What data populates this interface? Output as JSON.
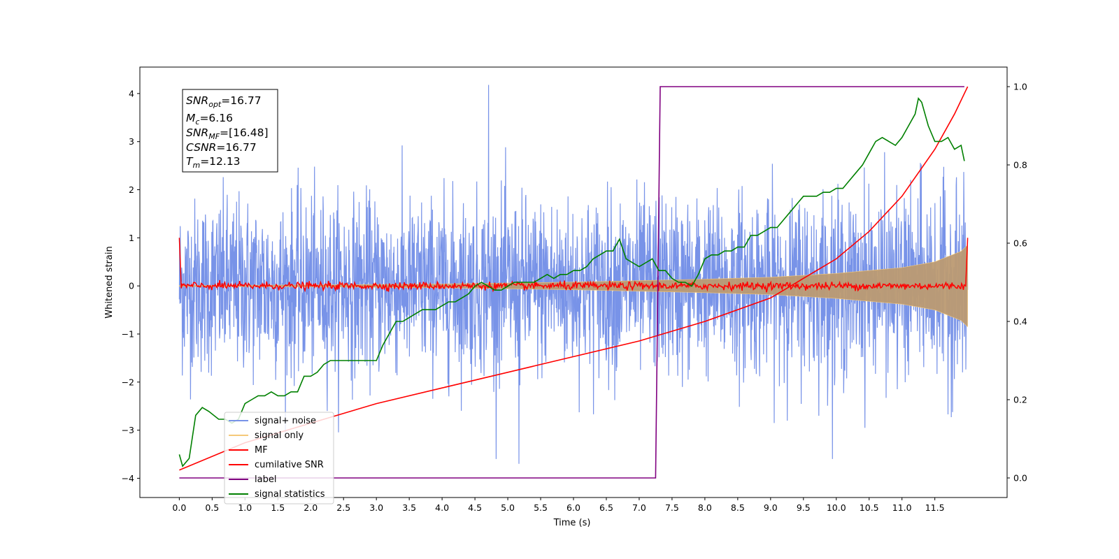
{
  "chart_data": {
    "type": "line",
    "xlabel": "Time (s)",
    "ylabel": "Whitened strain",
    "xlim": [
      -0.6,
      12.6
    ],
    "ylim": [
      -4.4,
      4.55
    ],
    "y2lim": [
      -0.05,
      1.05
    ],
    "x_ticks": [
      "0.0",
      "0.5",
      "1.0",
      "1.5",
      "2.0",
      "2.5",
      "3.0",
      "3.5",
      "4.0",
      "4.5",
      "5.0",
      "5.5",
      "6.0",
      "6.5",
      "7.0",
      "7.5",
      "8.0",
      "8.5",
      "9.0",
      "9.5",
      "10.0",
      "10.5",
      "11.0",
      "11.5"
    ],
    "y_ticks": [
      "−4",
      "−3",
      "−2",
      "−1",
      "0",
      "1",
      "2",
      "3",
      "4"
    ],
    "y2_ticks": [
      "0.0",
      "0.2",
      "0.4",
      "0.6",
      "0.8",
      "1.0"
    ],
    "annotation": {
      "snr_opt": "=16.77",
      "mc": "=6.16",
      "snr_mf": "=[16.48]",
      "csnr": "=16.77",
      "tm": "=12.13"
    },
    "legend": {
      "signal_noise": "signal+ noise",
      "signal_only": "signal only",
      "mf": "MF",
      "cumulative_snr": "cumilative SNR",
      "label": "label",
      "signal_statistics": "signal statistics"
    },
    "legend_position": "lower-left",
    "colors": {
      "signal_noise": "#7893e8",
      "signal_only": "#f5c97a",
      "signal_band": "#bc9a72",
      "mf": "#ff0000",
      "cumulative_snr": "#ff0000",
      "label": "#800080",
      "signal_statistics": "#008000"
    },
    "series": [
      {
        "key": "signal_noise",
        "axis": "left",
        "noise_std": 0.9,
        "peaks": [
          4.18,
          -3.7
        ],
        "x_range": [
          0.0,
          12.0
        ]
      },
      {
        "key": "signal_only",
        "axis": "left",
        "envelope_x": [
          0.0,
          2.0,
          4.0,
          6.0,
          8.0,
          9.0,
          10.0,
          11.0,
          11.5,
          11.9,
          12.0
        ],
        "envelope_y": [
          0.01,
          0.02,
          0.04,
          0.08,
          0.14,
          0.18,
          0.26,
          0.38,
          0.5,
          0.72,
          0.85
        ]
      },
      {
        "key": "mf",
        "axis": "left",
        "x_range": [
          0.0,
          12.0
        ],
        "start_values": [
          1.0,
          -0.05
        ],
        "end_value": 1.0,
        "noise_std": 0.04
      },
      {
        "key": "cumulative_snr",
        "axis": "right",
        "x": [
          0.0,
          1.0,
          2.0,
          3.0,
          4.0,
          5.0,
          6.0,
          7.0,
          8.0,
          9.0,
          10.0,
          10.5,
          11.0,
          11.5,
          11.8,
          12.0
        ],
        "y": [
          0.02,
          0.09,
          0.14,
          0.19,
          0.23,
          0.27,
          0.31,
          0.35,
          0.4,
          0.46,
          0.56,
          0.63,
          0.72,
          0.84,
          0.93,
          1.0
        ]
      },
      {
        "key": "label",
        "axis": "right",
        "x": [
          0.0,
          7.25,
          7.32,
          11.95
        ],
        "y": [
          0.0,
          0.0,
          1.0,
          1.0
        ]
      },
      {
        "key": "signal_statistics",
        "axis": "right",
        "x": [
          0.0,
          0.05,
          0.15,
          0.25,
          0.35,
          0.45,
          0.6,
          0.7,
          0.8,
          0.9,
          1.0,
          1.1,
          1.2,
          1.3,
          1.4,
          1.5,
          1.6,
          1.7,
          1.8,
          1.9,
          2.0,
          2.1,
          2.2,
          2.3,
          2.4,
          2.5,
          2.6,
          2.7,
          2.8,
          2.9,
          3.0,
          3.1,
          3.2,
          3.3,
          3.4,
          3.5,
          3.6,
          3.7,
          3.8,
          3.9,
          4.0,
          4.1,
          4.2,
          4.3,
          4.4,
          4.5,
          4.6,
          4.7,
          4.8,
          4.9,
          5.0,
          5.1,
          5.2,
          5.3,
          5.4,
          5.5,
          5.6,
          5.7,
          5.8,
          5.9,
          6.0,
          6.1,
          6.2,
          6.3,
          6.4,
          6.5,
          6.6,
          6.7,
          6.8,
          6.9,
          7.0,
          7.1,
          7.2,
          7.3,
          7.4,
          7.5,
          7.6,
          7.7,
          7.8,
          7.9,
          8.0,
          8.1,
          8.2,
          8.3,
          8.4,
          8.5,
          8.6,
          8.7,
          8.8,
          8.9,
          9.0,
          9.1,
          9.2,
          9.3,
          9.4,
          9.5,
          9.6,
          9.7,
          9.8,
          9.9,
          10.0,
          10.1,
          10.2,
          10.3,
          10.4,
          10.5,
          10.6,
          10.7,
          10.8,
          10.9,
          11.0,
          11.1,
          11.2,
          11.25,
          11.3,
          11.4,
          11.5,
          11.6,
          11.7,
          11.8,
          11.9,
          11.95
        ],
        "y": [
          0.06,
          0.03,
          0.05,
          0.16,
          0.18,
          0.17,
          0.15,
          0.15,
          0.14,
          0.15,
          0.19,
          0.2,
          0.21,
          0.21,
          0.22,
          0.21,
          0.21,
          0.22,
          0.22,
          0.26,
          0.26,
          0.27,
          0.29,
          0.3,
          0.3,
          0.3,
          0.3,
          0.3,
          0.3,
          0.3,
          0.3,
          0.34,
          0.37,
          0.4,
          0.4,
          0.41,
          0.42,
          0.43,
          0.43,
          0.43,
          0.44,
          0.45,
          0.45,
          0.46,
          0.47,
          0.49,
          0.5,
          0.49,
          0.48,
          0.48,
          0.49,
          0.5,
          0.5,
          0.5,
          0.5,
          0.51,
          0.52,
          0.51,
          0.52,
          0.52,
          0.53,
          0.53,
          0.54,
          0.56,
          0.57,
          0.58,
          0.58,
          0.61,
          0.56,
          0.55,
          0.54,
          0.55,
          0.56,
          0.53,
          0.53,
          0.51,
          0.5,
          0.5,
          0.49,
          0.52,
          0.56,
          0.57,
          0.57,
          0.58,
          0.58,
          0.59,
          0.59,
          0.62,
          0.62,
          0.63,
          0.64,
          0.64,
          0.66,
          0.68,
          0.7,
          0.72,
          0.72,
          0.72,
          0.73,
          0.73,
          0.74,
          0.74,
          0.76,
          0.78,
          0.8,
          0.83,
          0.86,
          0.87,
          0.86,
          0.85,
          0.87,
          0.9,
          0.93,
          0.97,
          0.96,
          0.9,
          0.86,
          0.86,
          0.87,
          0.84,
          0.85,
          0.81
        ]
      }
    ]
  }
}
